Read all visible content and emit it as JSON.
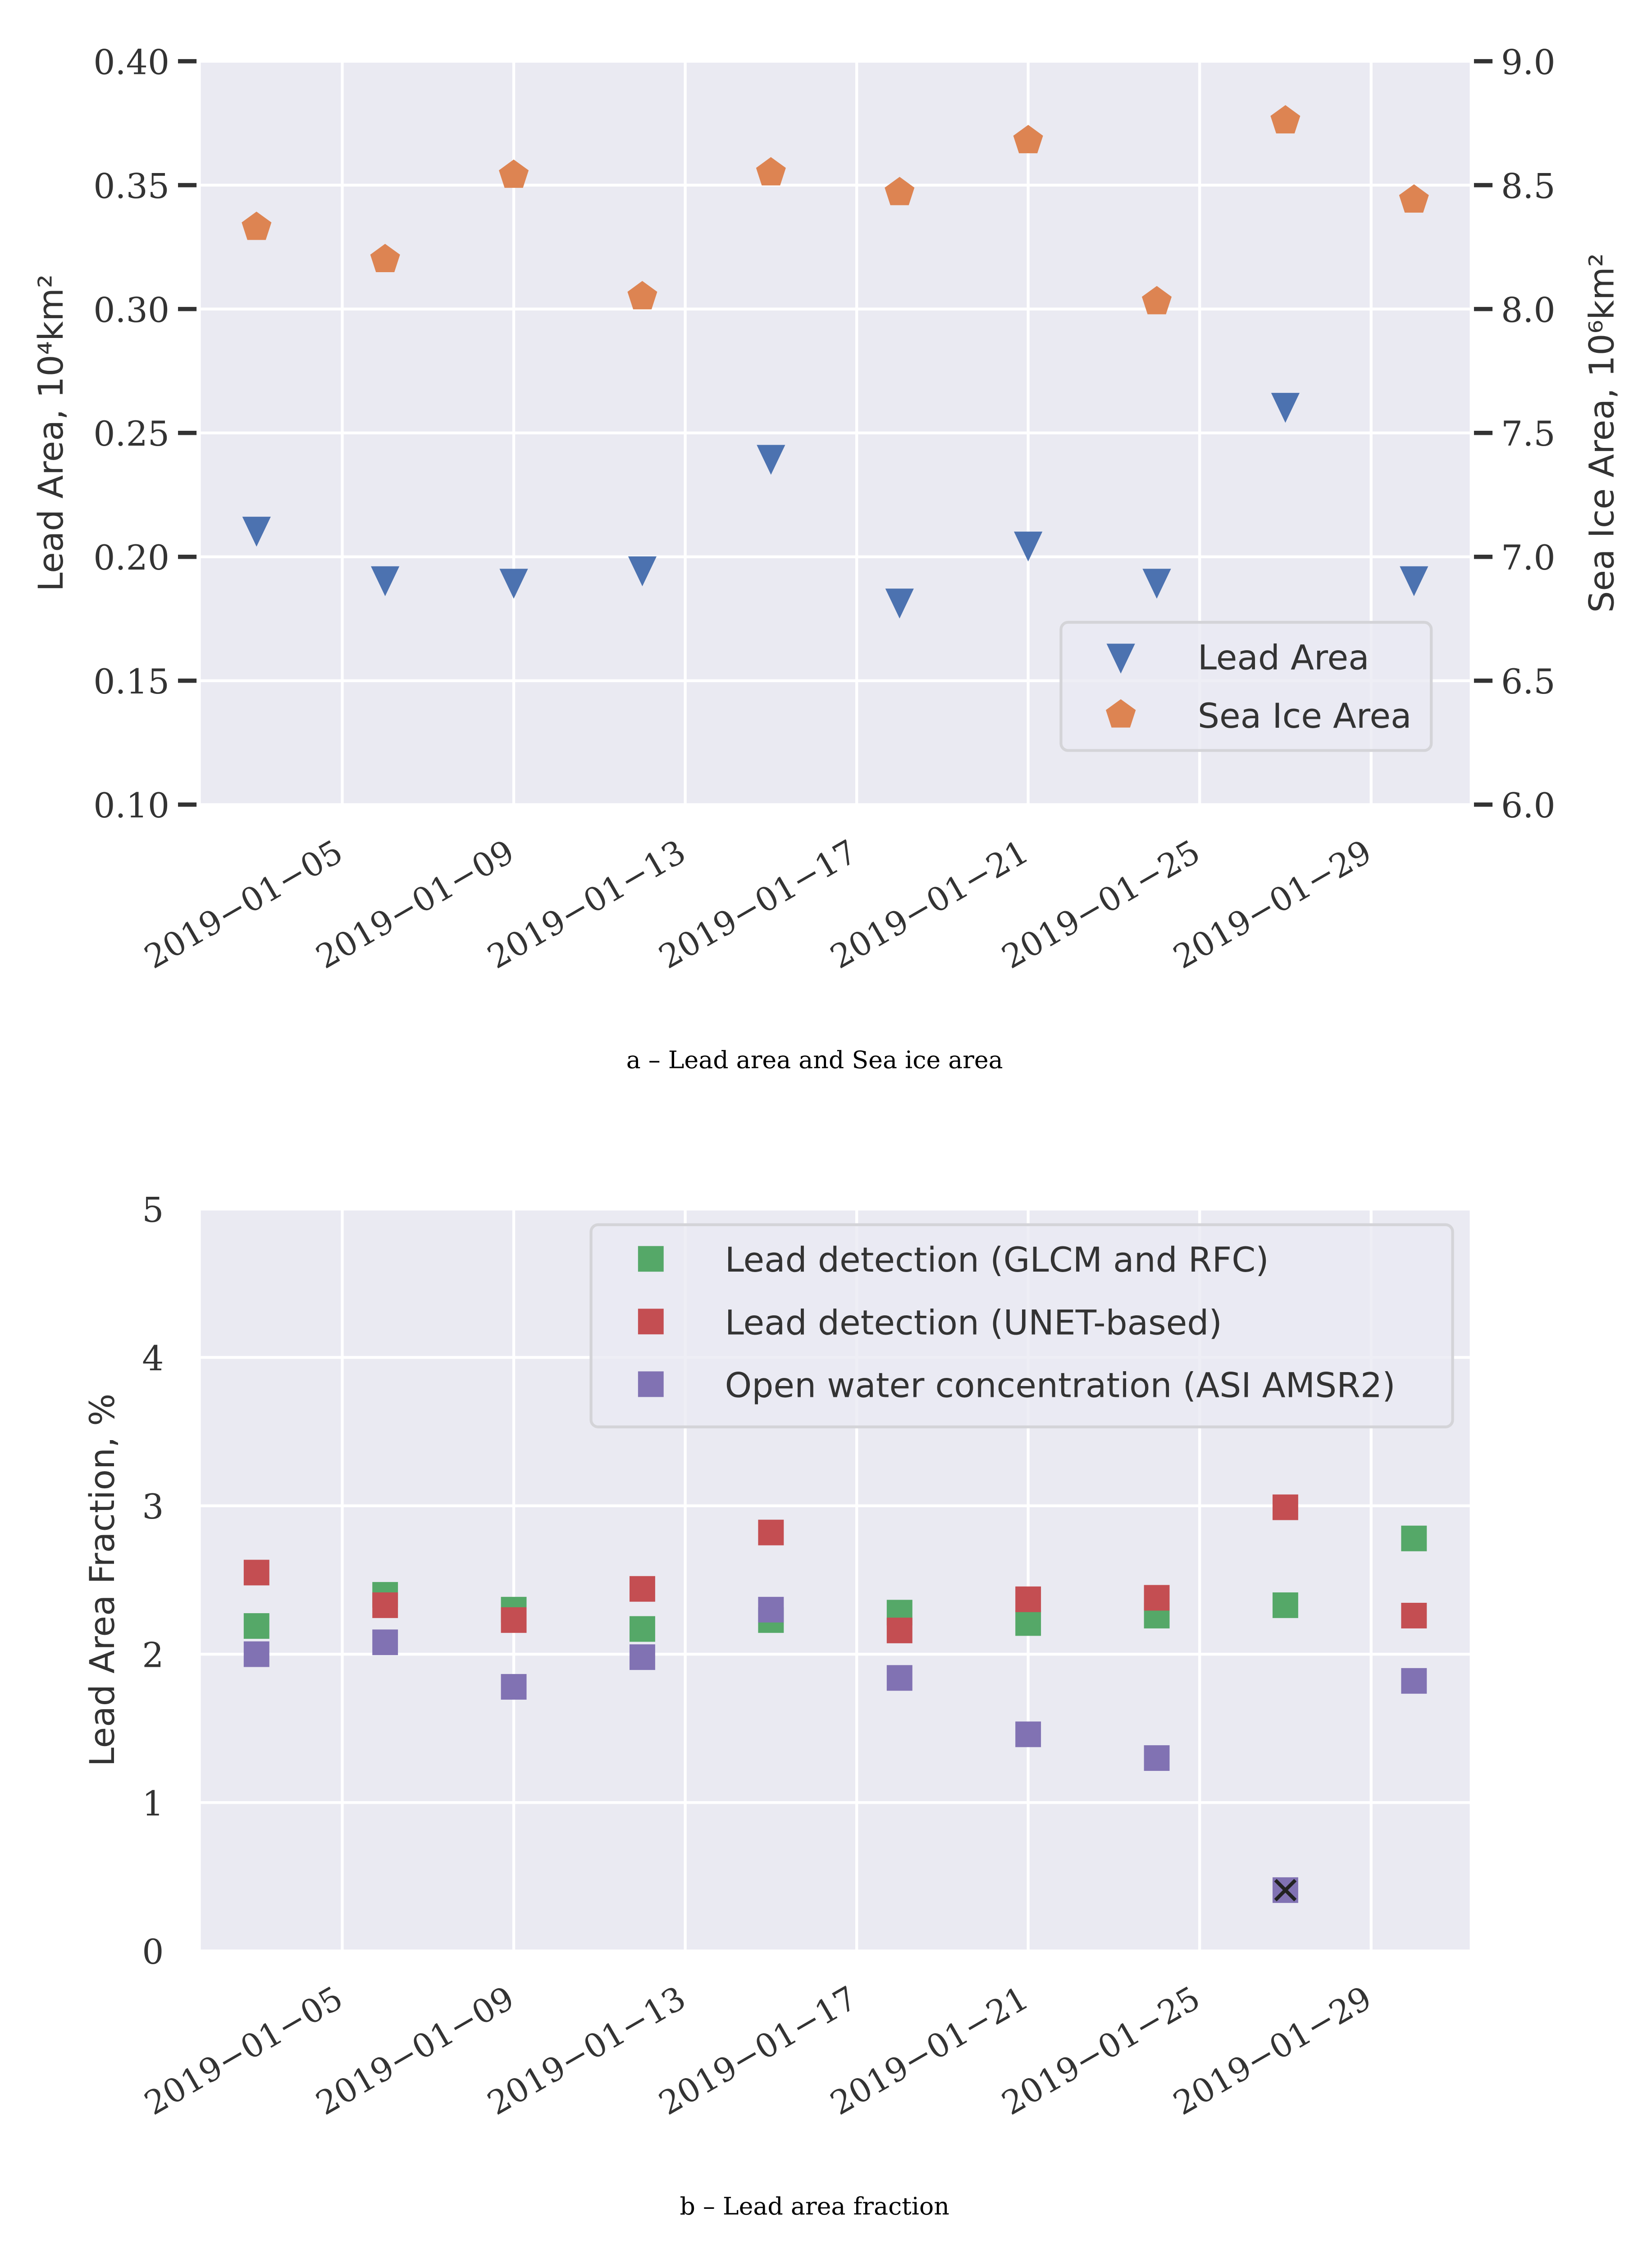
{
  "chart_data": [
    {
      "type": "scatter",
      "caption": "a – Lead area and Sea ice area",
      "xlabel": "",
      "ylabel": "Lead Area, 10⁴km²",
      "y2label": "Sea Ice Area, 10⁶km²",
      "x": [
        "2019-01-03",
        "2019-01-06",
        "2019-01-09",
        "2019-01-12",
        "2019-01-15",
        "2019-01-18",
        "2019-01-21",
        "2019-01-24",
        "2019-01-27",
        "2019-01-30"
      ],
      "xlim": [
        "2019-01-01.7",
        "2019-01-31.3"
      ],
      "xticks": [
        "2019-01-05",
        "2019-01-09",
        "2019-01-13",
        "2019-01-17",
        "2019-01-21",
        "2019-01-25",
        "2019-01-29"
      ],
      "ylim": [
        0.1,
        0.4
      ],
      "yticks": [
        "0.10",
        "0.15",
        "0.20",
        "0.25",
        "0.30",
        "0.35",
        "0.40"
      ],
      "y2lim": [
        6.0,
        9.0
      ],
      "y2ticks": [
        "6.0",
        "6.5",
        "7.0",
        "7.5",
        "8.0",
        "8.5",
        "9.0"
      ],
      "grid": true,
      "legend_position": "lower-right",
      "series": [
        {
          "name": "Lead Area",
          "axis": "left",
          "marker": "triangle-down",
          "color": "#4c72b0",
          "values": [
            0.211,
            0.191,
            0.19,
            0.195,
            0.24,
            0.182,
            0.205,
            0.19,
            0.261,
            0.191
          ]
        },
        {
          "name": "Sea Ice Area",
          "axis": "right",
          "marker": "pentagon",
          "color": "#dd8452",
          "values": [
            8.33,
            8.2,
            8.54,
            8.05,
            8.55,
            8.47,
            8.68,
            8.03,
            8.76,
            8.44
          ]
        }
      ]
    },
    {
      "type": "scatter",
      "caption": "b – Lead area fraction",
      "xlabel": "",
      "ylabel": "Lead Area Fraction, %",
      "x": [
        "2019-01-03",
        "2019-01-06",
        "2019-01-09",
        "2019-01-12",
        "2019-01-15",
        "2019-01-18",
        "2019-01-21",
        "2019-01-24",
        "2019-01-27",
        "2019-01-30"
      ],
      "xlim": [
        "2019-01-01.7",
        "2019-01-31.3"
      ],
      "xticks": [
        "2019-01-05",
        "2019-01-09",
        "2019-01-13",
        "2019-01-17",
        "2019-01-21",
        "2019-01-25",
        "2019-01-29"
      ],
      "ylim": [
        0,
        5
      ],
      "yticks": [
        "0",
        "1",
        "2",
        "3",
        "4",
        "5"
      ],
      "grid": true,
      "legend_position": "upper-right",
      "series": [
        {
          "name": "Lead detection (GLCM and RFC)",
          "marker": "square",
          "color": "#55a868",
          "values": [
            2.19,
            2.4,
            2.3,
            2.17,
            2.23,
            2.28,
            2.21,
            2.26,
            2.33,
            2.78
          ]
        },
        {
          "name": "Lead detection (UNET-based)",
          "marker": "square",
          "color": "#c44e52",
          "values": [
            2.55,
            2.33,
            2.23,
            2.44,
            2.82,
            2.16,
            2.37,
            2.38,
            2.99,
            2.26
          ]
        },
        {
          "name": "Open water concentration (ASI AMSR2)",
          "marker": "square",
          "color": "#8172b3",
          "values": [
            2.0,
            2.08,
            1.78,
            1.98,
            2.3,
            1.84,
            1.46,
            1.3,
            0.41,
            1.82
          ]
        }
      ],
      "annotations": [
        {
          "type": "x-marker",
          "x": "2019-01-27",
          "y": 0.41,
          "color": "#222222"
        }
      ]
    }
  ]
}
